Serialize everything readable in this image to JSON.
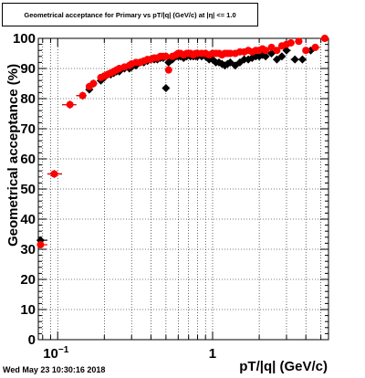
{
  "chart_data": {
    "type": "scatter",
    "title": "Geometrical acceptance for Primary vs pT/|q| (GeV/c) at |η| <= 1.0",
    "xlabel": "pT/|q| (GeV/c)",
    "ylabel": "Geometrical acceptance (%)",
    "xscale": "log",
    "xlim": [
      0.075,
      5.6
    ],
    "ylim": [
      0,
      100
    ],
    "x_tick_labels": [
      "10^-1",
      "1"
    ],
    "y_ticks": [
      0,
      10,
      20,
      30,
      40,
      50,
      60,
      70,
      80,
      90,
      100
    ],
    "grid": true,
    "series": [
      {
        "color": "#000000",
        "marker": "diamond",
        "x": [
          0.0775,
          0.095,
          0.12,
          0.145,
          0.16,
          0.17,
          0.19,
          0.2,
          0.21,
          0.22,
          0.23,
          0.24,
          0.25,
          0.27,
          0.29,
          0.3,
          0.32,
          0.34,
          0.36,
          0.38,
          0.4,
          0.42,
          0.44,
          0.46,
          0.48,
          0.5,
          0.52,
          0.55,
          0.58,
          0.6,
          0.62,
          0.65,
          0.68,
          0.7,
          0.72,
          0.75,
          0.78,
          0.8,
          0.85,
          0.9,
          0.95,
          1.0,
          1.05,
          1.1,
          1.15,
          1.2,
          1.25,
          1.3,
          1.4,
          1.5,
          1.6,
          1.7,
          1.8,
          1.9,
          2.0,
          2.1,
          2.2,
          2.4,
          2.6,
          2.8,
          3.0,
          3.4,
          3.8,
          4.3
        ],
        "y": [
          33,
          55,
          78,
          81,
          83,
          85,
          86,
          87,
          88,
          88,
          88.5,
          89,
          89,
          90,
          90,
          90.5,
          91,
          92,
          92,
          92.5,
          93,
          93,
          93,
          93.5,
          93.5,
          83.5,
          92,
          93,
          94,
          94,
          94,
          93.5,
          94,
          94.5,
          94,
          94,
          94,
          94,
          94,
          94,
          93,
          93,
          92,
          92,
          91.5,
          91,
          91.5,
          92,
          91,
          92,
          93,
          93,
          93.5,
          94,
          94,
          94.5,
          94,
          95,
          93,
          94,
          96,
          93,
          93,
          96
        ]
      },
      {
        "color": "#ff0000",
        "marker": "circle",
        "x": [
          0.0775,
          0.095,
          0.12,
          0.145,
          0.16,
          0.17,
          0.19,
          0.2,
          0.21,
          0.22,
          0.23,
          0.24,
          0.25,
          0.27,
          0.29,
          0.3,
          0.32,
          0.34,
          0.36,
          0.38,
          0.4,
          0.42,
          0.44,
          0.46,
          0.48,
          0.5,
          0.52,
          0.55,
          0.58,
          0.6,
          0.62,
          0.65,
          0.68,
          0.7,
          0.72,
          0.75,
          0.78,
          0.8,
          0.85,
          0.9,
          0.95,
          1.0,
          1.05,
          1.1,
          1.15,
          1.2,
          1.25,
          1.3,
          1.4,
          1.5,
          1.6,
          1.7,
          1.8,
          1.9,
          2.0,
          2.1,
          2.2,
          2.4,
          2.6,
          2.8,
          3.0,
          3.2,
          3.6,
          4.0,
          4.6,
          5.3
        ],
        "y": [
          31.5,
          55,
          78,
          81,
          84,
          85,
          87,
          87.5,
          88,
          88.5,
          89,
          89.5,
          90,
          90.5,
          91,
          91.5,
          92,
          92,
          92.5,
          93,
          93,
          93.5,
          93.5,
          94,
          94,
          94,
          89.5,
          94,
          94.5,
          95,
          95,
          94.5,
          95,
          95,
          95,
          94.5,
          95,
          95,
          95,
          95,
          94.5,
          95,
          95,
          95,
          94.5,
          95,
          95,
          95,
          95,
          95.5,
          95.5,
          96,
          95.5,
          96,
          96,
          96.5,
          96,
          97,
          96,
          97.5,
          98,
          98.5,
          99,
          96,
          97,
          100
        ]
      }
    ]
  },
  "datestamp": "Wed May 23 10:30:16 2018"
}
